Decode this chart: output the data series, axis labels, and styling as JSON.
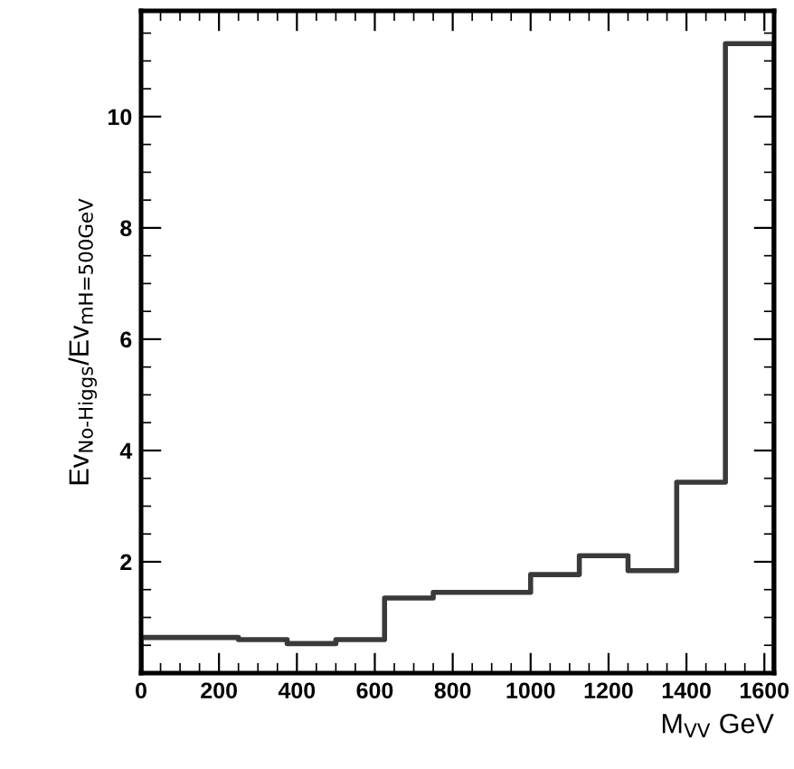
{
  "chart_data": {
    "type": "histogram",
    "xlabel": "M$_{VV}$ GeV",
    "ylabel": "Ev$_{No-Higgs}$/Ev$_{mH=500GeV}$",
    "bins": [
      0,
      250,
      375,
      500,
      625,
      750,
      875,
      1000,
      1125,
      1250,
      1375,
      1500,
      1625
    ],
    "values": [
      0.64,
      0.6,
      0.53,
      0.6,
      1.35,
      1.45,
      1.45,
      1.77,
      2.11,
      1.84,
      3.43,
      11.31
    ],
    "color": "#3a3a3a",
    "xlim": [
      0,
      1625
    ],
    "ylim": [
      0,
      11.9
    ],
    "xticks": [
      0,
      200,
      400,
      600,
      800,
      1000,
      1200,
      1400,
      1600
    ],
    "yticks": [
      2,
      4,
      6,
      8,
      10
    ],
    "grid": false
  }
}
